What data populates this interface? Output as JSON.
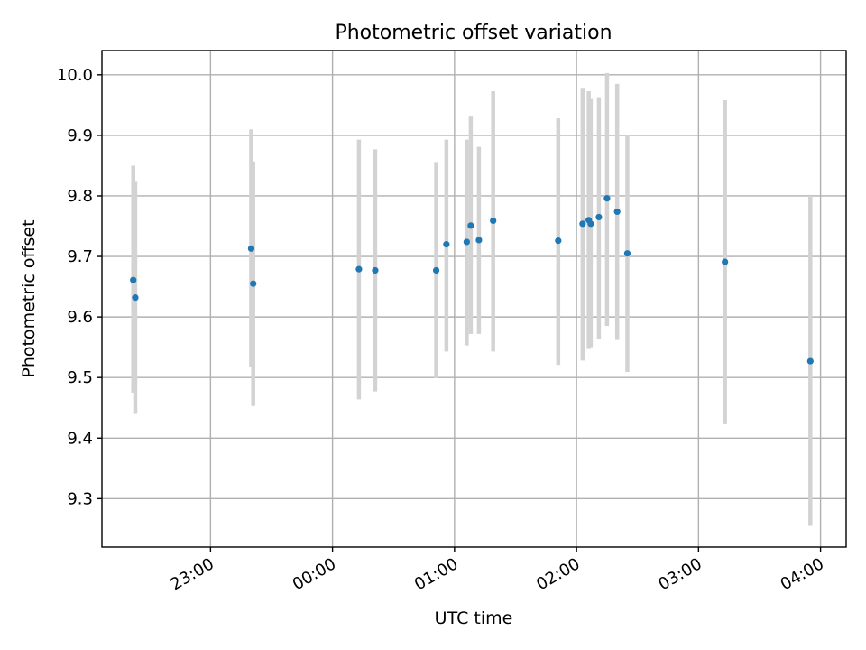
{
  "chart_data": {
    "type": "scatter",
    "title": "Photometric offset variation",
    "xlabel": "UTC time",
    "ylabel": "Photometric offset",
    "x_tick_labels": [
      "23:00",
      "00:00",
      "01:00",
      "02:00",
      "03:00",
      "04:00"
    ],
    "x_ticks_hours": [
      23,
      24,
      25,
      26,
      27,
      28
    ],
    "xlim_hours": [
      22.11,
      28.21
    ],
    "y_ticks": [
      9.3,
      9.4,
      9.5,
      9.6,
      9.7,
      9.8,
      9.9,
      10.0
    ],
    "y_tick_labels": [
      "9.3",
      "9.4",
      "9.5",
      "9.6",
      "9.7",
      "9.8",
      "9.9",
      "10.0"
    ],
    "ylim": [
      9.22,
      10.04
    ],
    "grid": true,
    "colors": {
      "point": "#1f77b4",
      "error_bar": "#d3d3d3",
      "grid": "#b0b0b0"
    },
    "series": [
      {
        "points": [
          {
            "t": "22:22",
            "y": 9.661,
            "lo": 9.475,
            "hi": 9.85
          },
          {
            "t": "22:23",
            "y": 9.632,
            "lo": 9.44,
            "hi": 9.823
          },
          {
            "t": "23:20",
            "y": 9.713,
            "lo": 9.517,
            "hi": 9.91
          },
          {
            "t": "23:21",
            "y": 9.655,
            "lo": 9.453,
            "hi": 9.857
          },
          {
            "t": "00:13",
            "y": 9.679,
            "lo": 9.464,
            "hi": 9.893
          },
          {
            "t": "00:21",
            "y": 9.677,
            "lo": 9.477,
            "hi": 9.877
          },
          {
            "t": "00:51",
            "y": 9.677,
            "lo": 9.499,
            "hi": 9.856
          },
          {
            "t": "00:56",
            "y": 9.72,
            "lo": 9.543,
            "hi": 9.893
          },
          {
            "t": "01:06",
            "y": 9.724,
            "lo": 9.553,
            "hi": 9.893
          },
          {
            "t": "01:08",
            "y": 9.751,
            "lo": 9.572,
            "hi": 9.931
          },
          {
            "t": "01:12",
            "y": 9.727,
            "lo": 9.572,
            "hi": 9.881
          },
          {
            "t": "01:19",
            "y": 9.759,
            "lo": 9.543,
            "hi": 9.973
          },
          {
            "t": "01:51",
            "y": 9.726,
            "lo": 9.521,
            "hi": 9.928
          },
          {
            "t": "02:03",
            "y": 9.754,
            "lo": 9.528,
            "hi": 9.977
          },
          {
            "t": "02:06",
            "y": 9.76,
            "lo": 9.547,
            "hi": 9.973
          },
          {
            "t": "02:07",
            "y": 9.754,
            "lo": 9.55,
            "hi": 9.96
          },
          {
            "t": "02:11",
            "y": 9.765,
            "lo": 9.564,
            "hi": 9.963
          },
          {
            "t": "02:15",
            "y": 9.796,
            "lo": 9.585,
            "hi": 10.003
          },
          {
            "t": "02:20",
            "y": 9.774,
            "lo": 9.562,
            "hi": 9.985
          },
          {
            "t": "02:25",
            "y": 9.705,
            "lo": 9.509,
            "hi": 9.9
          },
          {
            "t": "03:13",
            "y": 9.691,
            "lo": 9.423,
            "hi": 9.958
          },
          {
            "t": "03:55",
            "y": 9.527,
            "lo": 9.255,
            "hi": 9.8
          }
        ]
      }
    ]
  }
}
